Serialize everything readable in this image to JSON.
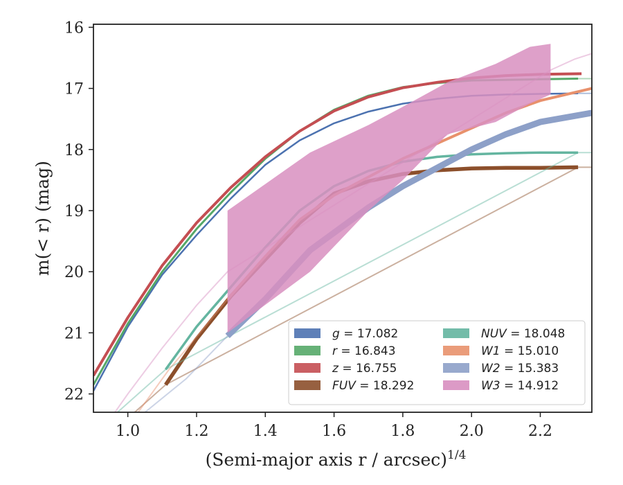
{
  "chart_data": {
    "type": "line",
    "xlabel": "(Semi-major axis r / arcsec)",
    "xlabel_exponent": "1/4",
    "ylabel": "m(< r) (mag)",
    "xlim": [
      0.9,
      2.35
    ],
    "ylim": [
      22.3,
      15.95
    ],
    "y_inverted": true,
    "xticks": [
      "1.0",
      "1.2",
      "1.4",
      "1.6",
      "1.8",
      "2.0",
      "2.2"
    ],
    "yticks": [
      "16",
      "17",
      "18",
      "19",
      "20",
      "21",
      "22"
    ],
    "grid": false,
    "legend": {
      "placement": "lower-right",
      "columns": 2
    },
    "series": [
      {
        "name": "g = 17.082",
        "var": "g",
        "value": "17.082",
        "color": "#4c72b0",
        "x": [
          0.9,
          1.0,
          1.1,
          1.2,
          1.3,
          1.4,
          1.5,
          1.6,
          1.7,
          1.8,
          1.9,
          2.0,
          2.1,
          2.2,
          2.31
        ],
        "y": [
          21.95,
          20.9,
          20.05,
          19.4,
          18.8,
          18.25,
          17.85,
          17.57,
          17.38,
          17.25,
          17.17,
          17.12,
          17.1,
          17.09,
          17.08
        ],
        "y_low": [],
        "y_high": [],
        "faint_x": [
          2.31,
          2.35
        ],
        "faint_y": [
          17.08,
          17.08
        ]
      },
      {
        "name": "r = 16.843",
        "var": "r",
        "value": "16.843",
        "color": "#55a868",
        "x": [
          0.9,
          1.0,
          1.1,
          1.2,
          1.3,
          1.4,
          1.5,
          1.6,
          1.7,
          1.8,
          1.9,
          2.0,
          2.1,
          2.2,
          2.31
        ],
        "y": [
          21.85,
          20.85,
          20.0,
          19.3,
          18.7,
          18.15,
          17.7,
          17.35,
          17.12,
          16.98,
          16.91,
          16.87,
          16.86,
          16.85,
          16.84
        ],
        "y_low": [],
        "y_high": [],
        "faint_x": [
          2.31,
          2.35
        ],
        "faint_y": [
          16.84,
          16.84
        ]
      },
      {
        "name": "z = 16.755",
        "var": "z",
        "value": "16.755",
        "color": "#c44e52",
        "x": [
          0.9,
          1.0,
          1.1,
          1.2,
          1.3,
          1.4,
          1.5,
          1.6,
          1.7,
          1.8,
          1.9,
          2.0,
          2.1,
          2.2,
          2.32
        ],
        "y": [
          21.7,
          20.75,
          19.9,
          19.2,
          18.62,
          18.12,
          17.7,
          17.37,
          17.14,
          16.99,
          16.9,
          16.83,
          16.79,
          16.77,
          16.76
        ],
        "y_low": [],
        "y_high": [],
        "faint_x": [],
        "faint_y": []
      },
      {
        "name": "FUV = 18.292",
        "var": "FUV",
        "value": "18.292",
        "color": "#8c4f2b",
        "x": [
          1.11,
          1.2,
          1.3,
          1.4,
          1.5,
          1.6,
          1.7,
          1.8,
          1.9,
          2.0,
          2.1,
          2.2,
          2.31
        ],
        "y": [
          21.85,
          21.1,
          20.4,
          19.8,
          19.2,
          18.72,
          18.52,
          18.4,
          18.34,
          18.31,
          18.3,
          18.3,
          18.29
        ],
        "y_low": [],
        "y_high": [],
        "faint_x": [
          1.02,
          1.11,
          2.31,
          2.35
        ],
        "faint_y": [
          22.3,
          21.85,
          18.29,
          18.29
        ]
      },
      {
        "name": "NUV = 18.048",
        "var": "NUV",
        "value": "18.048",
        "color": "#64b5a0",
        "x": [
          1.11,
          1.2,
          1.3,
          1.4,
          1.5,
          1.6,
          1.7,
          1.8,
          1.9,
          2.0,
          2.1,
          2.2,
          2.31
        ],
        "y": [
          21.6,
          20.9,
          20.25,
          19.6,
          19.0,
          18.6,
          18.35,
          18.2,
          18.12,
          18.08,
          18.06,
          18.05,
          18.05
        ],
        "y_low": [],
        "y_high": [],
        "faint_x": [
          0.97,
          1.04,
          1.11,
          2.31,
          2.35
        ],
        "faint_y": [
          22.3,
          21.95,
          21.6,
          18.05,
          18.05
        ]
      },
      {
        "name": "W1 = 15.010",
        "var": "W1",
        "value": "15.010",
        "color": "#e8916c",
        "x": [
          1.29,
          1.4,
          1.5,
          1.6,
          1.7,
          1.8,
          1.9,
          2.0,
          2.1,
          2.2,
          2.35
        ],
        "y": [
          20.45,
          19.75,
          19.15,
          18.75,
          18.45,
          18.15,
          17.9,
          17.65,
          17.4,
          17.2,
          17.0
        ],
        "y_low": [],
        "y_high": [],
        "faint_x": [
          1.03,
          1.12,
          1.21,
          1.29
        ],
        "faint_y": [
          22.3,
          21.6,
          21.0,
          20.45
        ]
      },
      {
        "name": "W2 = 15.383",
        "var": "W2",
        "value": "15.383",
        "color": "#8da0c8",
        "x": [
          1.29,
          1.4,
          1.53,
          1.7,
          1.8,
          1.9,
          2.0,
          2.1,
          2.2,
          2.35
        ],
        "y": [
          21.05,
          20.45,
          19.65,
          18.95,
          18.6,
          18.3,
          18.0,
          17.75,
          17.55,
          17.4
        ],
        "y_low": [],
        "y_high": [],
        "faint_x": [
          1.05,
          1.17,
          1.29
        ],
        "faint_y": [
          22.3,
          21.75,
          21.05
        ]
      },
      {
        "name": "W3 = 14.912",
        "var": "W3",
        "value": "14.912",
        "color": "#d88fc0",
        "x": [
          1.29,
          1.53,
          1.7,
          1.8,
          1.93,
          2.07,
          2.17,
          2.23
        ],
        "y": [
          20.0,
          19.0,
          18.45,
          18.15,
          17.65,
          17.3,
          16.95,
          16.7
        ],
        "y_low": [
          21.0,
          20.0,
          19.0,
          18.5,
          17.75,
          17.55,
          17.25,
          17.1
        ],
        "y_high": [
          19.0,
          18.05,
          17.6,
          17.3,
          16.9,
          16.6,
          16.32,
          16.27
        ],
        "faint_x": [
          0.9,
          1.0,
          1.1,
          1.2,
          1.29,
          2.23,
          2.3,
          2.35
        ],
        "faint_y": [
          22.8,
          22.0,
          21.25,
          20.55,
          20.0,
          16.7,
          16.52,
          16.43
        ]
      }
    ]
  }
}
